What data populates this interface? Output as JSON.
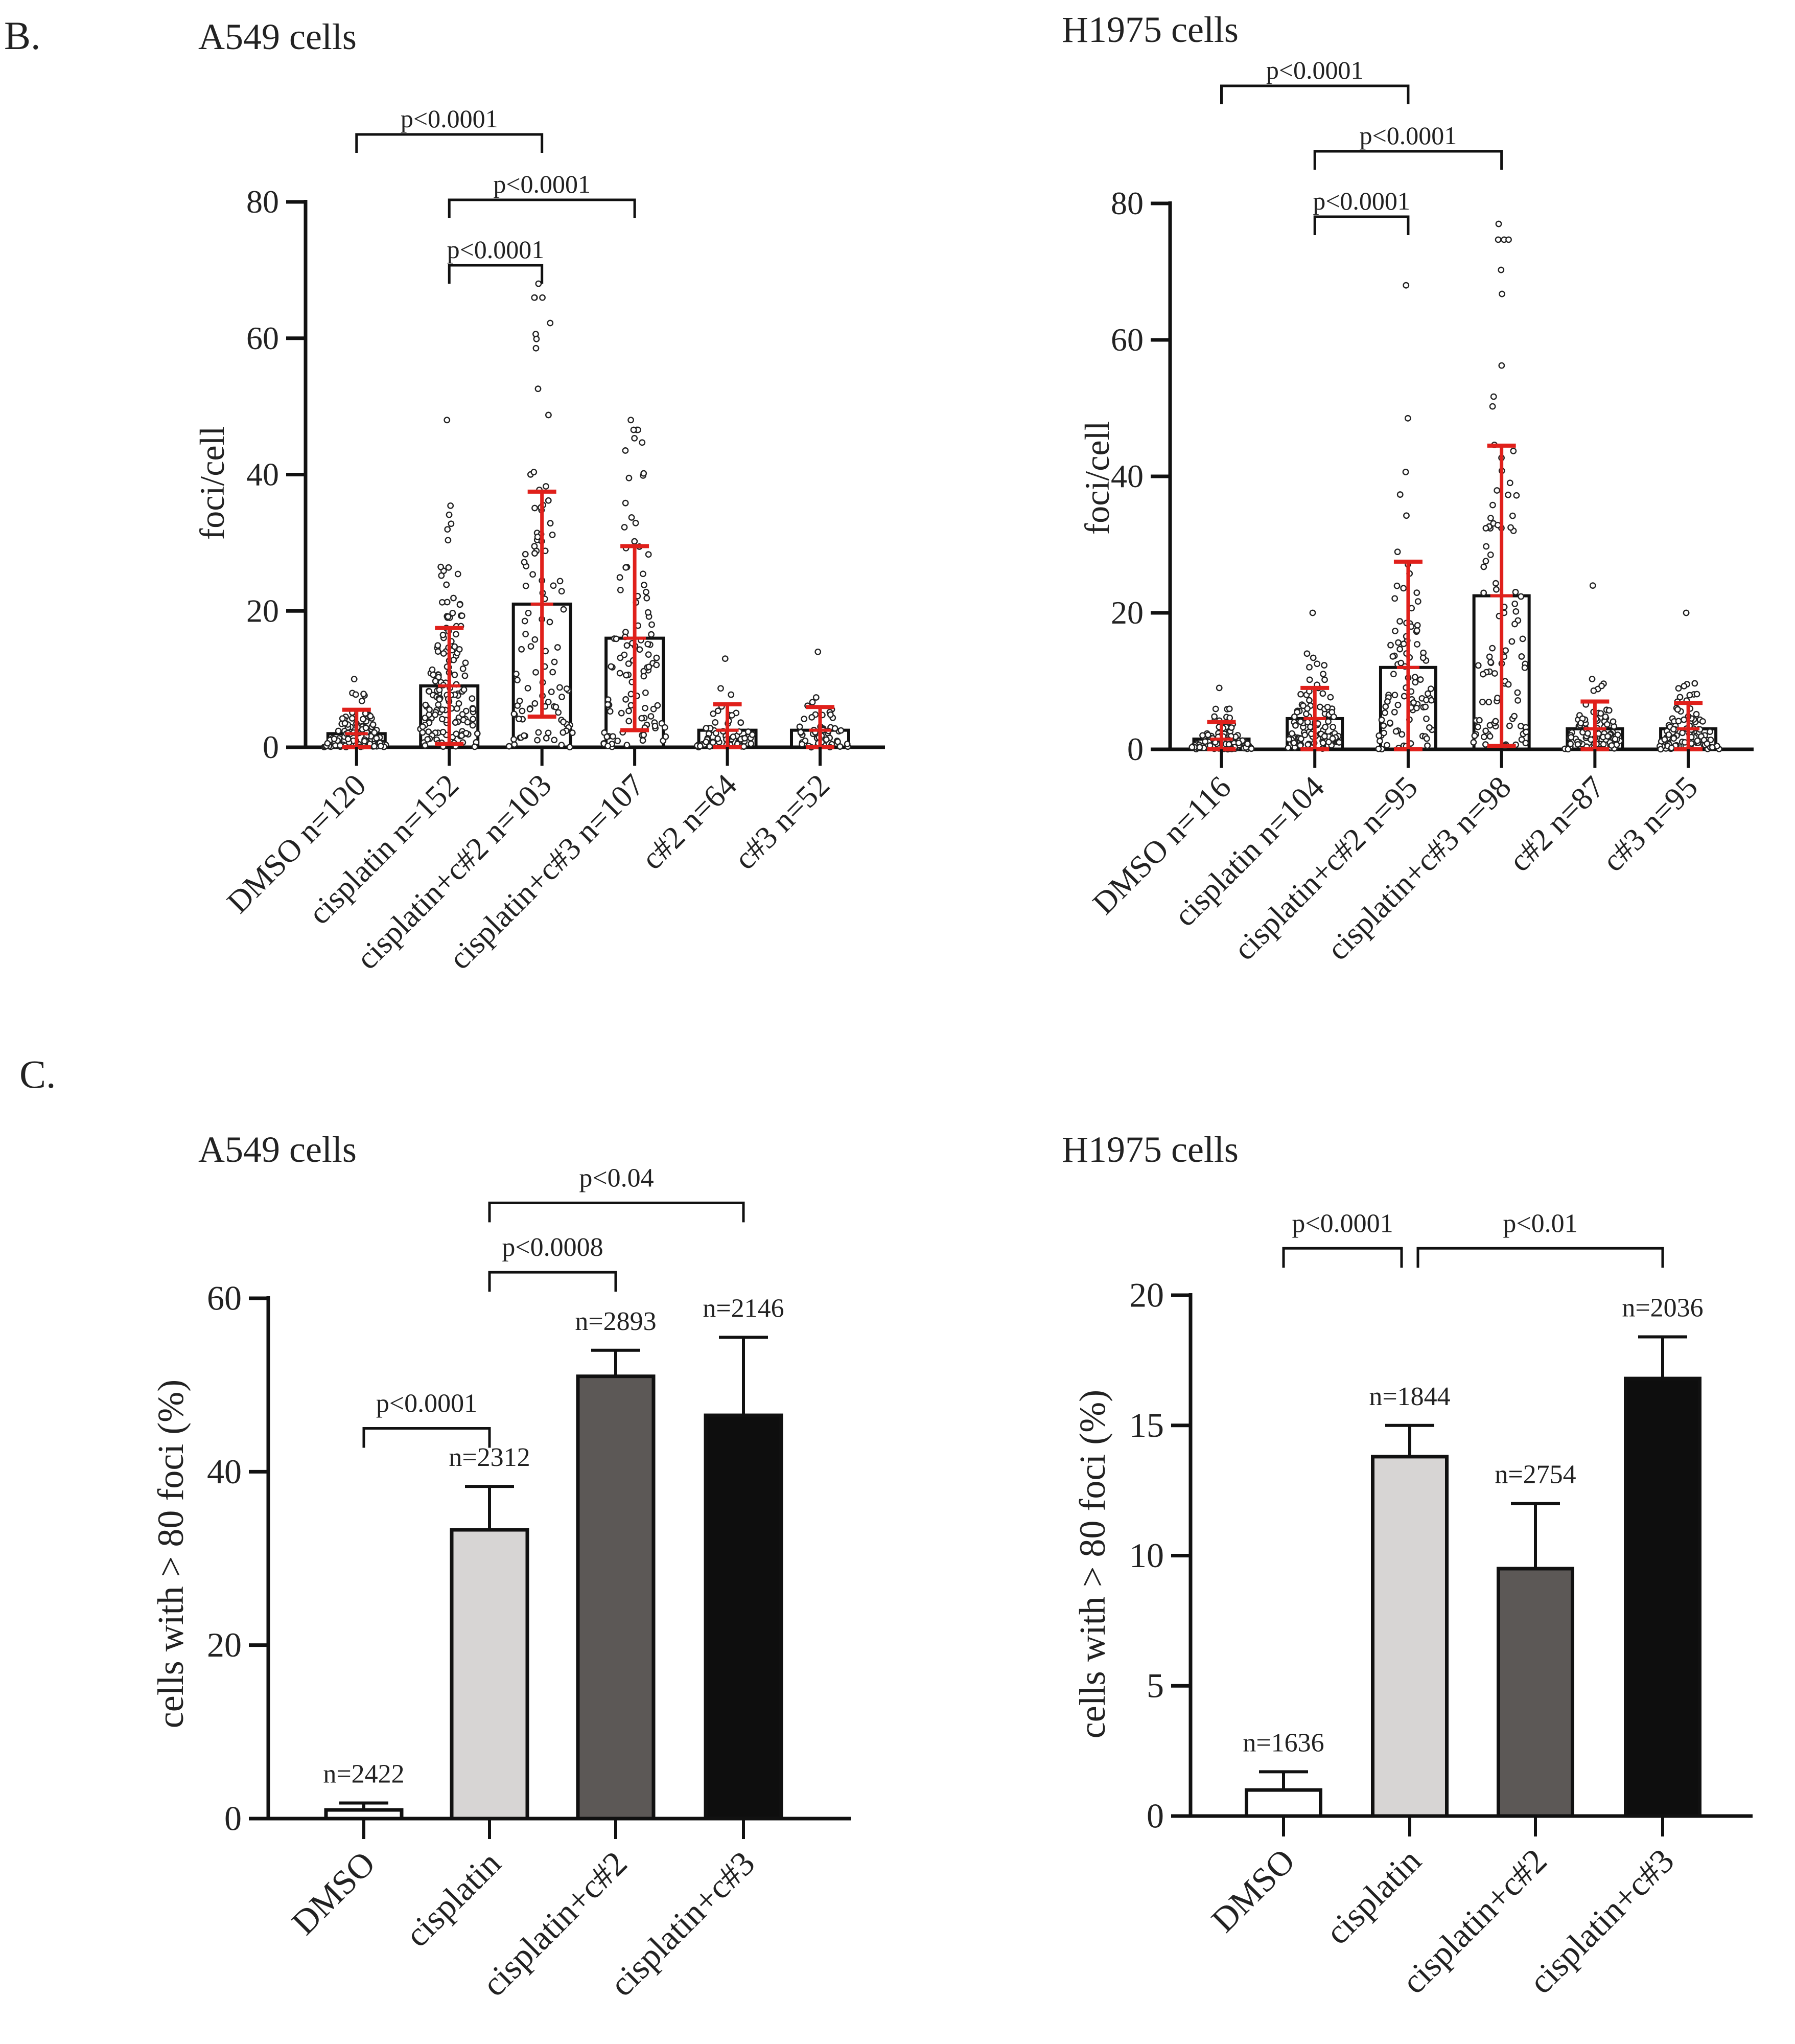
{
  "panels": [
    {
      "letter": "B.",
      "id": "panel-b"
    },
    {
      "letter": "C.",
      "id": "panel-c"
    }
  ],
  "colors": {
    "axis": "#111111",
    "error_red": "#e0201b",
    "dot_stroke": "#222222",
    "bar_dmso": "#ffffff",
    "bar_cis": "#d7d5d4",
    "bar_c2": "#5c5856",
    "bar_c3": "#0e0e0e"
  },
  "chart_data": [
    {
      "type": "bar",
      "panel": "B",
      "title": "A549 cells",
      "ylabel": "foci/cell",
      "xlabel": "",
      "ylim": [
        0,
        80
      ],
      "yticks": [
        0,
        20,
        40,
        60,
        80
      ],
      "categories": [
        "DMSO n=120",
        "cisplatin n=152",
        "cisplatin+c#2 n=103",
        "cisplatin+c#3 n=107",
        "c#2 n=64",
        "c#3 n=52"
      ],
      "values": [
        2.0,
        9.0,
        21.0,
        16.0,
        2.5,
        2.5
      ],
      "sd": [
        3.5,
        8.5,
        16.5,
        13.5,
        3.8,
        3.4
      ],
      "max_points": [
        10,
        48,
        68,
        48,
        13,
        14
      ],
      "n": [
        120,
        152,
        103,
        107,
        64,
        52
      ],
      "significance": [
        {
          "from": 0,
          "to": 2,
          "label": "p<0.0001",
          "level": 0
        },
        {
          "from": 1,
          "to": 3,
          "label": "p<0.0001",
          "level": 1
        },
        {
          "from": 1,
          "to": 2,
          "label": "p<0.0001",
          "level": 2
        }
      ]
    },
    {
      "type": "bar",
      "panel": "B",
      "title": "H1975 cells",
      "ylabel": "foci/cell",
      "xlabel": "",
      "ylim": [
        0,
        80
      ],
      "yticks": [
        0,
        20,
        40,
        60,
        80
      ],
      "categories": [
        "DMSO n=116",
        "cisplatin n=104",
        "cisplatin+c#2 n=95",
        "cisplatin+c#3 n=98",
        "c#2 n=87",
        "c#3 n=95"
      ],
      "values": [
        1.5,
        4.5,
        12.0,
        22.5,
        3.0,
        3.0
      ],
      "sd": [
        2.5,
        4.5,
        15.5,
        22.0,
        4.0,
        3.8
      ],
      "max_points": [
        9,
        20,
        68,
        77,
        24,
        20
      ],
      "n": [
        116,
        104,
        95,
        98,
        87,
        95
      ],
      "significance": [
        {
          "from": 0,
          "to": 2,
          "label": "p<0.0001",
          "level": 0
        },
        {
          "from": 1,
          "to": 3,
          "label": "p<0.0001",
          "level": 1
        },
        {
          "from": 1,
          "to": 2,
          "label": "p<0.0001",
          "level": 2
        }
      ]
    },
    {
      "type": "bar",
      "panel": "C",
      "title": "A549 cells",
      "ylabel": "cells with > 80 foci (%)",
      "xlabel": "",
      "ylim": [
        0,
        60
      ],
      "yticks": [
        0,
        20,
        40,
        60
      ],
      "categories": [
        "DMSO",
        "cisplatin",
        "cisplatin+c#2",
        "cisplatin+c#3"
      ],
      "values": [
        1.0,
        33.3,
        51.0,
        46.5
      ],
      "error": [
        0.8,
        5.0,
        3.0,
        9.0
      ],
      "n_labels": [
        "n=2422",
        "n=2312",
        "n=2893",
        "n=2146"
      ],
      "significance": [
        {
          "from": 0,
          "to": 1,
          "label": "p<0.0001",
          "y": 45
        },
        {
          "from": 1,
          "to": 2,
          "label": "p<0.0008",
          "y": 63
        },
        {
          "from": 1,
          "to": 3,
          "label": "p<0.04",
          "y": 71
        }
      ]
    },
    {
      "type": "bar",
      "panel": "C",
      "title": "H1975 cells",
      "ylabel": "cells with > 80 foci (%)",
      "xlabel": "",
      "ylim": [
        0,
        20
      ],
      "yticks": [
        0,
        5,
        10,
        15,
        20
      ],
      "categories": [
        "DMSO",
        "cisplatin",
        "cisplatin+c#2",
        "cisplatin+c#3"
      ],
      "values": [
        1.0,
        13.8,
        9.5,
        16.8
      ],
      "error": [
        0.7,
        1.2,
        2.5,
        1.6
      ],
      "n_labels": [
        "n=1636",
        "n=1844",
        "n=2754",
        "n=2036"
      ],
      "significance": [
        {
          "from": 0,
          "to": 1,
          "label": "p<0.0001",
          "y": 21.8
        },
        {
          "from": 1,
          "to": 3,
          "label": "p<0.01",
          "y": 21.8
        }
      ]
    }
  ]
}
